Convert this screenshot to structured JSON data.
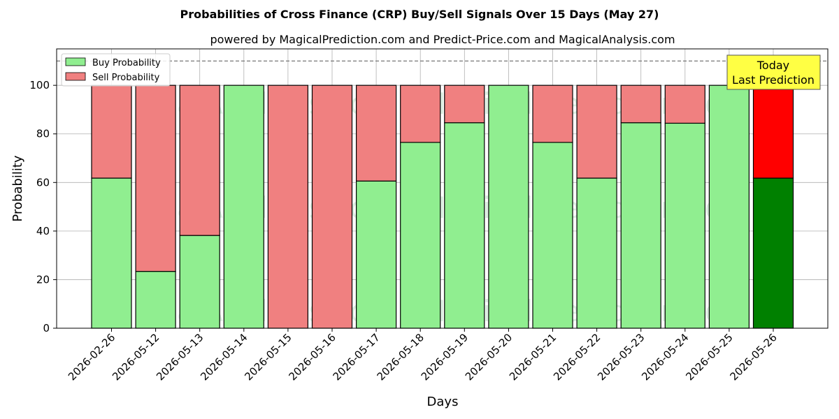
{
  "chart_data": {
    "type": "bar",
    "stacked": true,
    "title": "Probabilities of Cross Finance (CRP) Buy/Sell Signals Over 15 Days (May 27)",
    "subtitle": "powered by MagicalPrediction.com and Predict-Price.com and MagicalAnalysis.com",
    "xlabel": "Days",
    "ylabel": "Probability",
    "ylim": [
      0,
      115
    ],
    "yticks": [
      0,
      20,
      40,
      60,
      80,
      100
    ],
    "grid": true,
    "legend_position": "top-left",
    "reference_line": 110,
    "categories": [
      "2026-02-26",
      "2026-05-12",
      "2026-05-13",
      "2026-05-14",
      "2026-05-15",
      "2026-05-16",
      "2026-05-17",
      "2026-05-18",
      "2026-05-19",
      "2026-05-20",
      "2026-05-21",
      "2026-05-22",
      "2026-05-23",
      "2026-05-24",
      "2026-05-25",
      "2026-05-26"
    ],
    "series": [
      {
        "name": "Buy Probability",
        "color": "#90ee90",
        "values": [
          61.8,
          23.4,
          38.2,
          100,
          0,
          0,
          60.6,
          76.5,
          84.6,
          100,
          76.5,
          61.8,
          84.6,
          84.4,
          100,
          61.8
        ]
      },
      {
        "name": "Sell Probability",
        "color": "#f08080",
        "values": [
          38.2,
          76.6,
          61.8,
          0,
          100,
          100,
          39.4,
          23.5,
          15.4,
          0,
          23.5,
          38.2,
          15.4,
          15.6,
          0,
          38.2
        ]
      }
    ],
    "highlight": {
      "index": 15,
      "buy_color": "#008000",
      "sell_color": "#ff0000"
    },
    "annotation": {
      "lines": [
        "Today",
        "Last Prediction"
      ],
      "color": "#ffff44"
    },
    "watermarks": [
      "MagicalAnalysis.com",
      "MagicalPrediction.com"
    ]
  }
}
